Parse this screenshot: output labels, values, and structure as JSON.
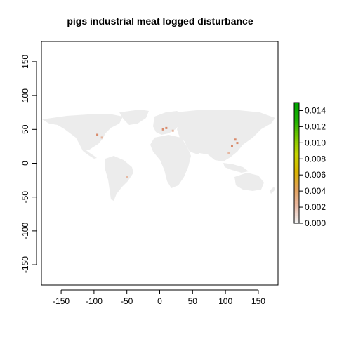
{
  "title": "pigs industrial meat logged disturbance",
  "chart_data": {
    "type": "heatmap",
    "title": "pigs industrial meat logged disturbance",
    "xlabel": "",
    "ylabel": "",
    "xlim": [
      -180,
      180
    ],
    "ylim": [
      -180,
      180
    ],
    "x_ticks": [
      "-150",
      "-100",
      "-50",
      "0",
      "50",
      "100",
      "150"
    ],
    "x_tick_values": [
      -150,
      -100,
      -50,
      0,
      50,
      100,
      150
    ],
    "y_ticks": [
      "-150",
      "-100",
      "-50",
      "0",
      "50",
      "100",
      "150"
    ],
    "y_tick_values": [
      -150,
      -100,
      -50,
      0,
      50,
      100,
      150
    ],
    "colorbar": {
      "ticks": [
        "0.000",
        "0.002",
        "0.004",
        "0.006",
        "0.008",
        "0.010",
        "0.012",
        "0.014"
      ],
      "tick_values": [
        0,
        0.002,
        0.004,
        0.006,
        0.008,
        0.01,
        0.012,
        0.014
      ],
      "range": [
        0,
        0.015
      ],
      "colors": [
        "#f2f2f2",
        "#e9b8a3",
        "#e2a25a",
        "#d9b400",
        "#c8d400",
        "#7bc800",
        "#1db300",
        "#00a600"
      ]
    },
    "hotspots": [
      {
        "lon": -95,
        "lat": 42,
        "value": 0.002
      },
      {
        "lon": -88,
        "lat": 38,
        "value": 0.001
      },
      {
        "lon": 5,
        "lat": 50,
        "value": 0.002
      },
      {
        "lon": 10,
        "lat": 52,
        "value": 0.002
      },
      {
        "lon": 20,
        "lat": 48,
        "value": 0.001
      },
      {
        "lon": 115,
        "lat": 35,
        "value": 0.003
      },
      {
        "lon": 118,
        "lat": 30,
        "value": 0.002
      },
      {
        "lon": 110,
        "lat": 25,
        "value": 0.002
      },
      {
        "lon": 105,
        "lat": 15,
        "value": 0.001
      },
      {
        "lon": -50,
        "lat": -20,
        "value": 0.001
      }
    ]
  },
  "colors": {
    "land": "#ececec",
    "background": "#ffffff"
  }
}
